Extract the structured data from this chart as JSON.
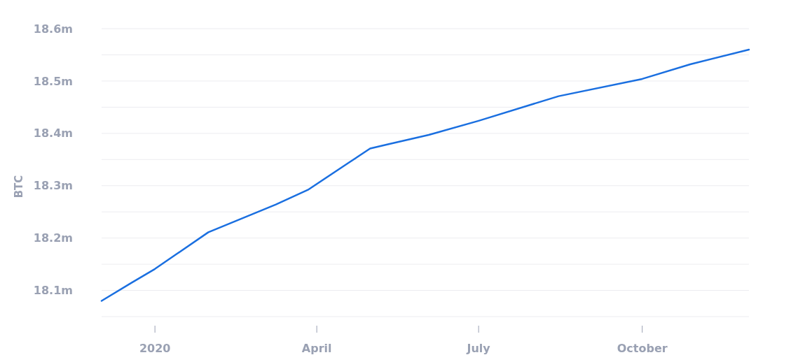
{
  "chart_data": {
    "type": "line",
    "ylabel": "BTC",
    "x": [
      "2019-12-02",
      "2019-12-19",
      "2020-01-01",
      "2020-01-31",
      "2020-03-09",
      "2020-03-27",
      "2020-04-19",
      "2020-05-01",
      "2020-05-11",
      "2020-06-03",
      "2020-07-01",
      "2020-08-15",
      "2020-10-01",
      "2020-10-28",
      "2020-11-30"
    ],
    "series": [
      {
        "color": "#1a6fe0",
        "values": [
          18.08,
          18.115,
          18.141,
          18.211,
          18.264,
          18.292,
          18.344,
          18.371,
          18.379,
          18.397,
          18.424,
          18.471,
          18.504,
          18.532,
          18.56
        ]
      }
    ],
    "xlim": [
      "2019-12-02",
      "2020-11-30"
    ],
    "xticks": [
      {
        "value": "2020-01-01",
        "label": "2020"
      },
      {
        "value": "2020-04-01",
        "label": "April"
      },
      {
        "value": "2020-07-01",
        "label": "July"
      },
      {
        "value": "2020-10-01",
        "label": "October"
      }
    ],
    "ylim": [
      18.05,
      18.6
    ],
    "yticks": [
      {
        "value": 18.05,
        "label": null
      },
      {
        "value": 18.1,
        "label": "18.1m"
      },
      {
        "value": 18.15,
        "label": null
      },
      {
        "value": 18.2,
        "label": "18.2m"
      },
      {
        "value": 18.25,
        "label": null
      },
      {
        "value": 18.3,
        "label": "18.3m"
      },
      {
        "value": 18.35,
        "label": null
      },
      {
        "value": 18.4,
        "label": "18.4m"
      },
      {
        "value": 18.45,
        "label": null
      },
      {
        "value": 18.5,
        "label": "18.5m"
      },
      {
        "value": 18.55,
        "label": null
      },
      {
        "value": 18.6,
        "label": "18.6m"
      }
    ],
    "grid": "y",
    "marker": "none",
    "line_style": "solid"
  }
}
